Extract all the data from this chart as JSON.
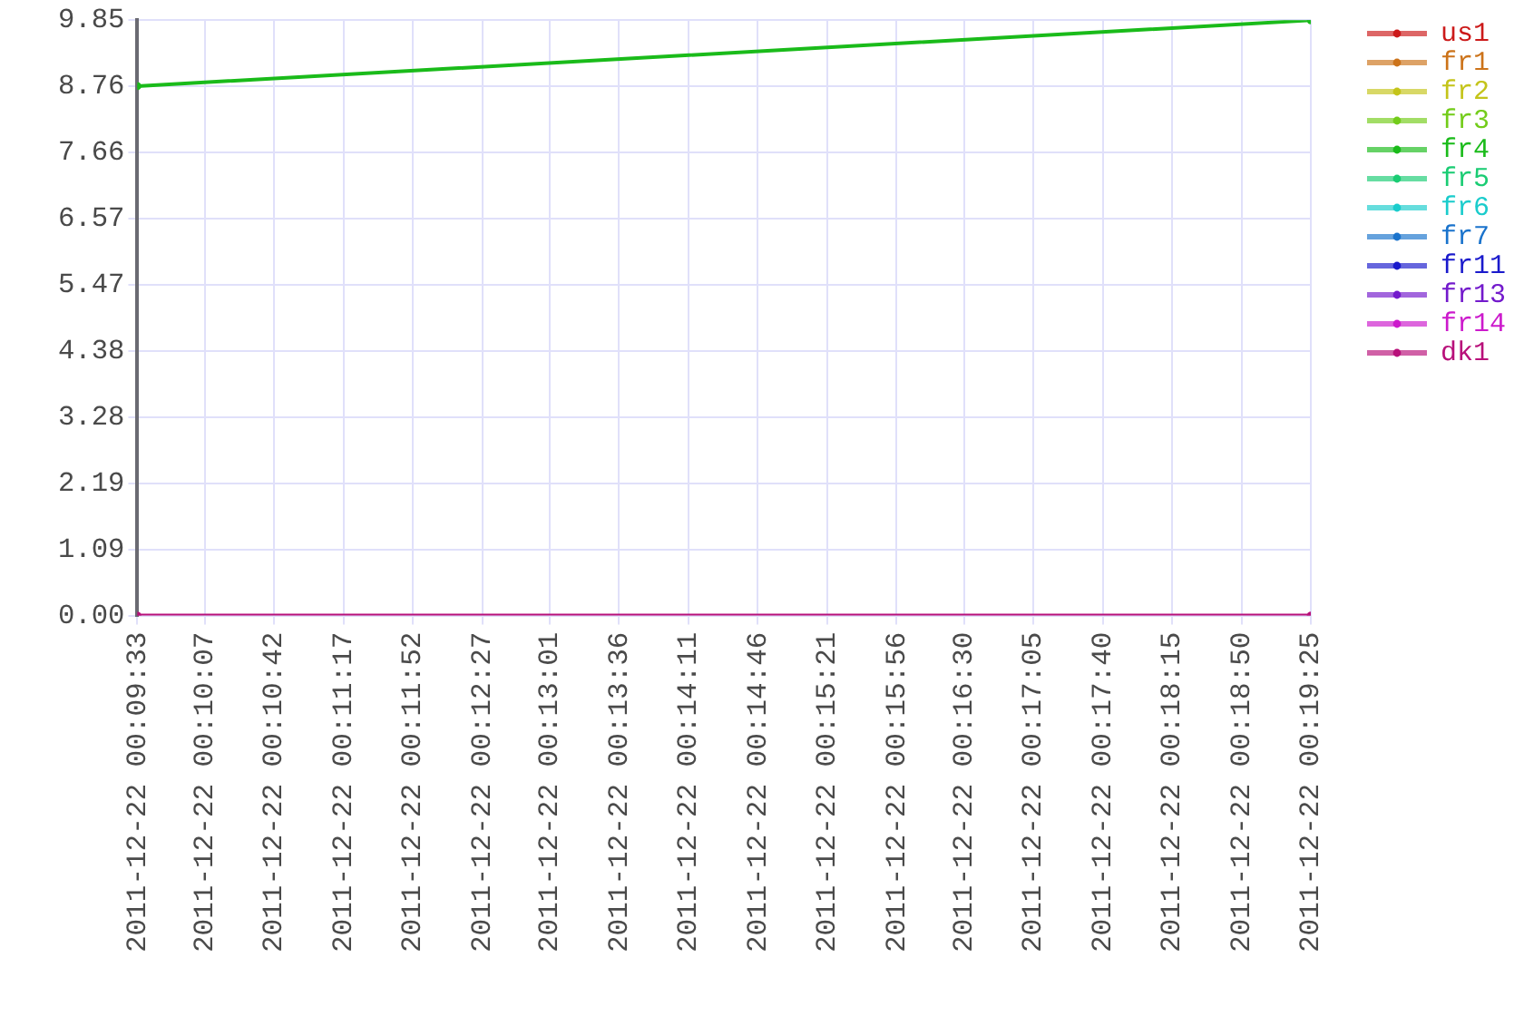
{
  "chart_data": {
    "type": "line",
    "x": [
      "2011-12-22T00:09:33",
      "2011-12-22T00:19:25"
    ],
    "series": [
      {
        "name": "us1",
        "color": "#cc1a1a",
        "values": [
          null,
          null
        ]
      },
      {
        "name": "fr1",
        "color": "#cc731a",
        "values": [
          null,
          null
        ]
      },
      {
        "name": "fr2",
        "color": "#c4c41a",
        "values": [
          null,
          null
        ]
      },
      {
        "name": "fr3",
        "color": "#73cc1a",
        "values": [
          null,
          null
        ]
      },
      {
        "name": "fr4",
        "color": "#1abb1a",
        "values": [
          8.76,
          9.85
        ]
      },
      {
        "name": "fr5",
        "color": "#1acc73",
        "values": [
          null,
          null
        ]
      },
      {
        "name": "fr6",
        "color": "#1acccc",
        "values": [
          null,
          null
        ]
      },
      {
        "name": "fr7",
        "color": "#1a73cc",
        "values": [
          null,
          null
        ]
      },
      {
        "name": "fr11",
        "color": "#1a1acc",
        "values": [
          null,
          null
        ]
      },
      {
        "name": "fr13",
        "color": "#731acc",
        "values": [
          null,
          null
        ]
      },
      {
        "name": "fr14",
        "color": "#cc1acc",
        "values": [
          null,
          null
        ]
      },
      {
        "name": "dk1",
        "color": "#b8107a",
        "values": [
          0,
          0
        ]
      }
    ],
    "xlim": [
      "2011-12-22T00:09:33",
      "2011-12-22T00:19:25"
    ],
    "xticks": [
      {
        "value": "2011-12-22T00:09:33",
        "label": "2011-12-22 00:09:33"
      },
      {
        "value": "2011-12-22T00:10:07",
        "label": "2011-12-22 00:10:07"
      },
      {
        "value": "2011-12-22T00:10:42",
        "label": "2011-12-22 00:10:42"
      },
      {
        "value": "2011-12-22T00:11:17",
        "label": "2011-12-22 00:11:17"
      },
      {
        "value": "2011-12-22T00:11:52",
        "label": "2011-12-22 00:11:52"
      },
      {
        "value": "2011-12-22T00:12:27",
        "label": "2011-12-22 00:12:27"
      },
      {
        "value": "2011-12-22T00:13:01",
        "label": "2011-12-22 00:13:01"
      },
      {
        "value": "2011-12-22T00:13:36",
        "label": "2011-12-22 00:13:36"
      },
      {
        "value": "2011-12-22T00:14:11",
        "label": "2011-12-22 00:14:11"
      },
      {
        "value": "2011-12-22T00:14:46",
        "label": "2011-12-22 00:14:46"
      },
      {
        "value": "2011-12-22T00:15:21",
        "label": "2011-12-22 00:15:21"
      },
      {
        "value": "2011-12-22T00:15:56",
        "label": "2011-12-22 00:15:56"
      },
      {
        "value": "2011-12-22T00:16:30",
        "label": "2011-12-22 00:16:30"
      },
      {
        "value": "2011-12-22T00:17:05",
        "label": "2011-12-22 00:17:05"
      },
      {
        "value": "2011-12-22T00:17:40",
        "label": "2011-12-22 00:17:40"
      },
      {
        "value": "2011-12-22T00:18:15",
        "label": "2011-12-22 00:18:15"
      },
      {
        "value": "2011-12-22T00:18:50",
        "label": "2011-12-22 00:18:50"
      },
      {
        "value": "2011-12-22T00:19:25",
        "label": "2011-12-22 00:19:25"
      }
    ],
    "ylim": [
      0,
      9.85
    ],
    "yticks": [
      {
        "value": 0,
        "label": "0.00"
      },
      1.09,
      2.19,
      3.28,
      4.38,
      5.47,
      6.57,
      7.66,
      8.76,
      9.85
    ],
    "grid": true,
    "legend": "top right",
    "marker": "circle",
    "line_style": "solid"
  }
}
